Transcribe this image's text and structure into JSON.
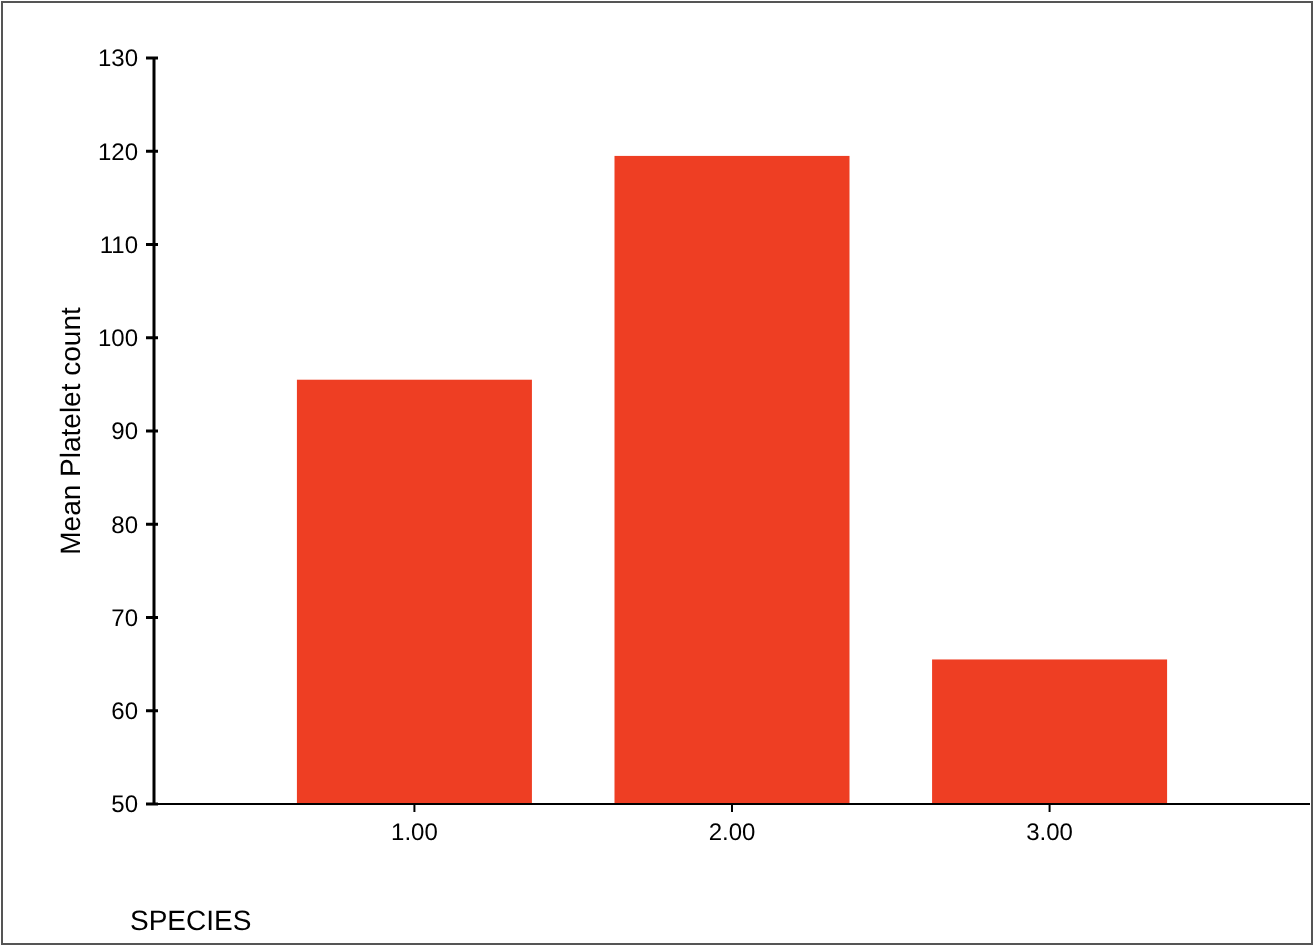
{
  "chart_data": {
    "type": "bar",
    "xlabel": "SPECIES",
    "ylabel": "Mean Platelet count",
    "categories": [
      "1.00",
      "2.00",
      "3.00"
    ],
    "values": [
      95.5,
      119.5,
      65.5
    ],
    "color": "#ee3e23",
    "ylim": [
      50,
      130
    ],
    "yticks": [
      50,
      60,
      70,
      80,
      90,
      100,
      110,
      120,
      130
    ],
    "grid": false
  }
}
